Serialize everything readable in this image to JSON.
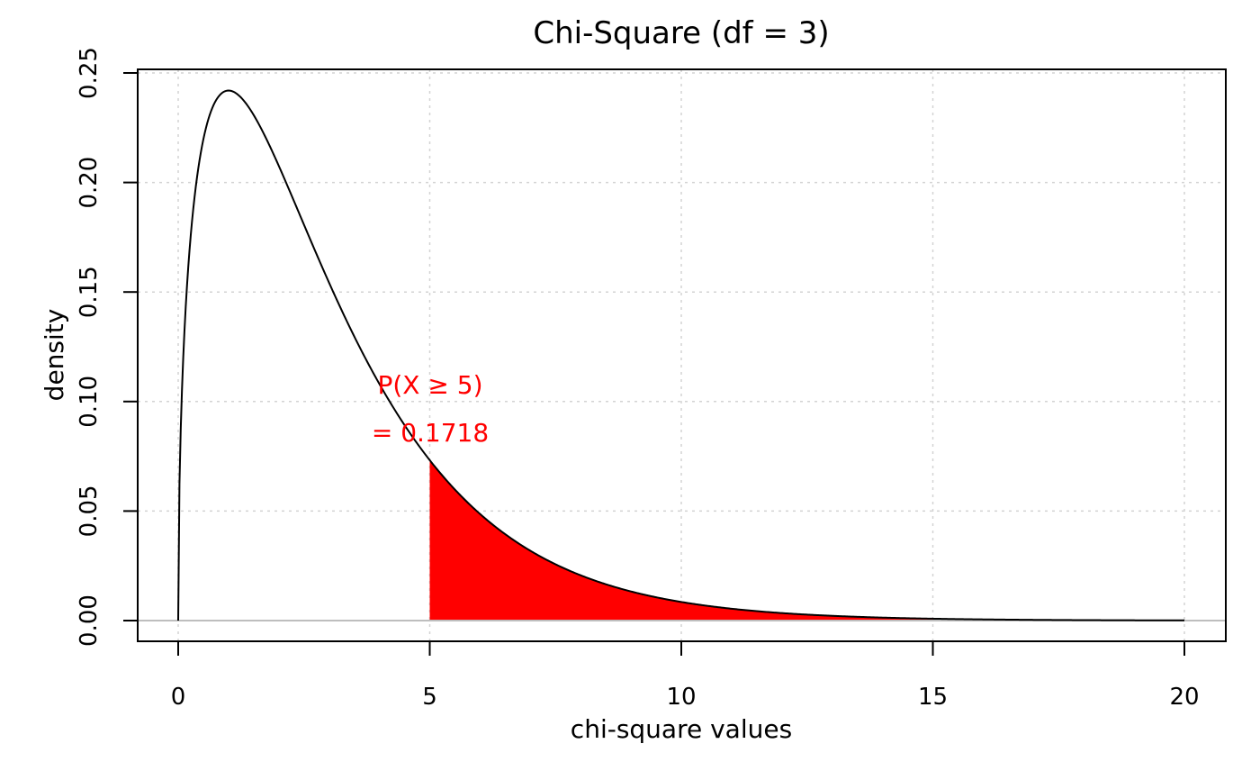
{
  "chart_data": {
    "type": "area",
    "title": "Chi-Square (df = 3)",
    "xlabel": "chi-square values",
    "ylabel": "density",
    "df": 3,
    "xlim": [
      0,
      20
    ],
    "ylim": [
      0,
      0.25
    ],
    "x_ticks": [
      0,
      5,
      10,
      15,
      20
    ],
    "x_tick_labels": [
      "0",
      "5",
      "10",
      "15",
      "20"
    ],
    "y_ticks": [
      0,
      0.05,
      0.1,
      0.15,
      0.2,
      0.25
    ],
    "y_tick_labels": [
      "0.00",
      "0.05",
      "0.10",
      "0.15",
      "0.20",
      "0.25"
    ],
    "grid": true,
    "series": [
      {
        "values": [
          [
            0,
            0
          ],
          [
            0.25,
            0.176
          ],
          [
            0.5,
            0.2197
          ],
          [
            1,
            0.242
          ],
          [
            1.5,
            0.2308
          ],
          [
            2,
            0.2076
          ],
          [
            2.5,
            0.1801
          ],
          [
            3,
            0.1542
          ],
          [
            4,
            0.108
          ],
          [
            5,
            0.0733
          ],
          [
            6,
            0.0488
          ],
          [
            7,
            0.032
          ],
          [
            8,
            0.0208
          ],
          [
            10,
            0.0085
          ],
          [
            12,
            0.0034
          ],
          [
            15,
            0.0008
          ],
          [
            20,
            0.0001
          ]
        ],
        "color": "#000000"
      }
    ],
    "shaded_region": {
      "from": 5,
      "to": 20,
      "color": "#ff0000"
    },
    "annotation": {
      "line1": "P(X ≥ 5)",
      "line2": "= 0.1718",
      "color": "#ff0000"
    }
  }
}
